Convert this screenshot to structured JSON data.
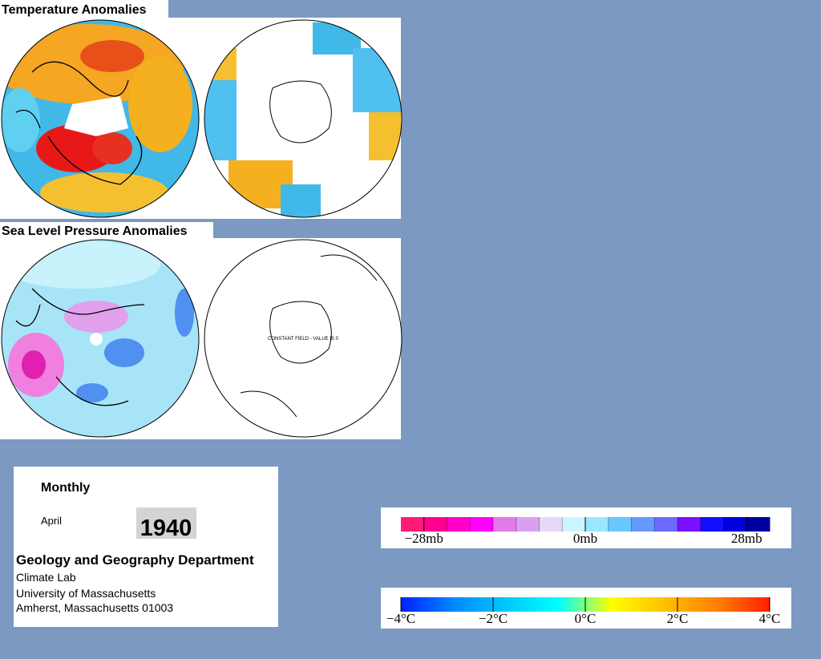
{
  "temperature_title": "Temperature Anomalies",
  "pressure_title": "Sea Level Pressure Anomalies",
  "constant_field_note": "CONSTANT FIELD - VALUE IS 0",
  "info": {
    "period": "Monthly",
    "month": "April",
    "year": "1940",
    "department": "Geology and Geography Department",
    "lines": [
      "Climate Lab",
      "University of Massachusetts",
      "Amherst, Massachusetts 01003"
    ]
  },
  "pressure_scale": {
    "lim": [
      -32,
      32
    ],
    "ticks": [
      {
        "value": -28,
        "label": "−28mb"
      },
      {
        "value": 0,
        "label": "0mb"
      },
      {
        "value": 28,
        "label": "28mb"
      }
    ],
    "colors": [
      "#ff1a75",
      "#ff0090",
      "#ff00c8",
      "#ff00ff",
      "#e07be8",
      "#d9a0f0",
      "#e6d8f6",
      "#ccf6ff",
      "#99e6ff",
      "#66c8ff",
      "#6699ff",
      "#6a6aff",
      "#7a10ff",
      "#1010ff",
      "#0000dd",
      "#0000a0"
    ]
  },
  "temperature_scale": {
    "lim": [
      -4,
      4
    ],
    "ticks": [
      {
        "value": -4,
        "label": "−4°C"
      },
      {
        "value": -2,
        "label": "−2°C"
      },
      {
        "value": 0,
        "label": "0°C"
      },
      {
        "value": 2,
        "label": "2°C"
      },
      {
        "value": 4,
        "label": "4°C"
      }
    ],
    "colors": [
      "#0020ff",
      "#0088ff",
      "#00c8ff",
      "#00ffff",
      "#ffff00",
      "#ffc000",
      "#ff8000",
      "#ff2000"
    ]
  }
}
